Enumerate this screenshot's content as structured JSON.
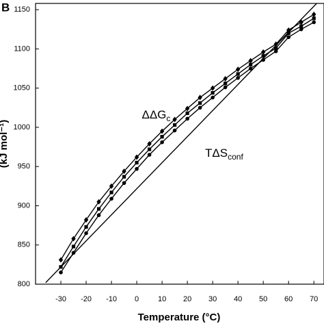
{
  "chart_data": {
    "type": "line",
    "panel_label": "B",
    "x_label": "Temperature (°C)",
    "y_label": "(kJ mol⁻¹)",
    "annotations": [
      {
        "text": "ΔΔG",
        "sub": "c",
        "x": 2,
        "y": 1015
      },
      {
        "text": "TΔS",
        "sub": "conf",
        "x": 27,
        "y": 966
      }
    ],
    "xlim": [
      -40,
      74
    ],
    "ylim": [
      800,
      1158
    ],
    "xticks": [
      -30,
      -20,
      -10,
      0,
      10,
      20,
      30,
      40,
      50,
      60,
      70
    ],
    "yticks": [
      800,
      850,
      900,
      950,
      1000,
      1050,
      1100,
      1150
    ],
    "series": [
      {
        "color": "#000000",
        "marker": "diamond",
        "x": [
          -30,
          -25,
          -20,
          -15,
          -10,
          -5,
          0,
          5,
          10,
          15,
          20,
          25,
          30,
          35,
          40,
          45,
          50,
          55,
          60,
          65,
          70
        ],
        "values": [
          831,
          858,
          882,
          905,
          925,
          944,
          962,
          979,
          995,
          1010,
          1024,
          1038,
          1050,
          1062,
          1074,
          1085,
          1096,
          1106,
          1124,
          1134,
          1144
        ]
      },
      {
        "color": "#000000",
        "marker": "square",
        "x": [
          -30,
          -25,
          -20,
          -15,
          -10,
          -5,
          0,
          5,
          10,
          15,
          20,
          25,
          30,
          35,
          40,
          45,
          50,
          55,
          60,
          65,
          70
        ],
        "values": [
          822,
          848,
          873,
          896,
          917,
          937,
          955,
          972,
          988,
          1003,
          1018,
          1031,
          1044,
          1056,
          1068,
          1080,
          1091,
          1101,
          1120,
          1129,
          1139
        ]
      },
      {
        "color": "#000000",
        "marker": "circle",
        "x": [
          -30,
          -25,
          -20,
          -15,
          -10,
          -5,
          0,
          5,
          10,
          15,
          20,
          25,
          30,
          35,
          40,
          45,
          50,
          55,
          60,
          65,
          70
        ],
        "values": [
          815,
          840,
          865,
          888,
          909,
          929,
          947,
          965,
          981,
          996,
          1011,
          1025,
          1038,
          1051,
          1063,
          1075,
          1086,
          1097,
          1115,
          1125,
          1134
        ]
      },
      {
        "color": "#000000",
        "marker": "none",
        "x": [
          -36,
          72
        ],
        "values": [
          802,
          1161
        ]
      }
    ]
  }
}
